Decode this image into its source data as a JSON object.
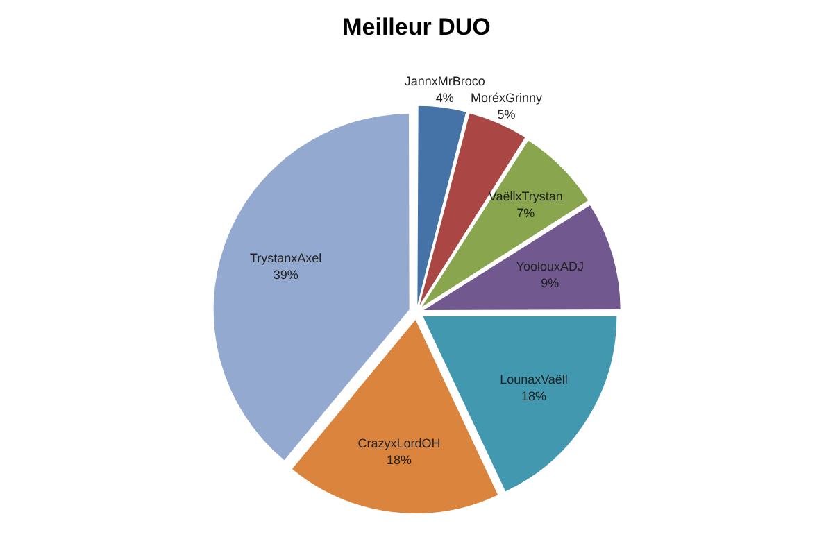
{
  "chart_data": {
    "type": "pie",
    "title": "Meilleur DUO",
    "categories": [
      "JannxMrBroco",
      "MoréxGrinny",
      "VaëllxTrystan",
      "YoolouxADJ",
      "LounaxVaëll",
      "CrazyxLordOH",
      "TrystanxAxel"
    ],
    "values": [
      4,
      5,
      7,
      9,
      18,
      18,
      39
    ],
    "colors": [
      "#4572a7",
      "#aa4643",
      "#89a54e",
      "#71588f",
      "#4198af",
      "#db843d",
      "#93a9cf"
    ],
    "value_labels": [
      "4%",
      "5%",
      "7%",
      "9%",
      "18%",
      "18%",
      "39%"
    ],
    "legend": false
  }
}
